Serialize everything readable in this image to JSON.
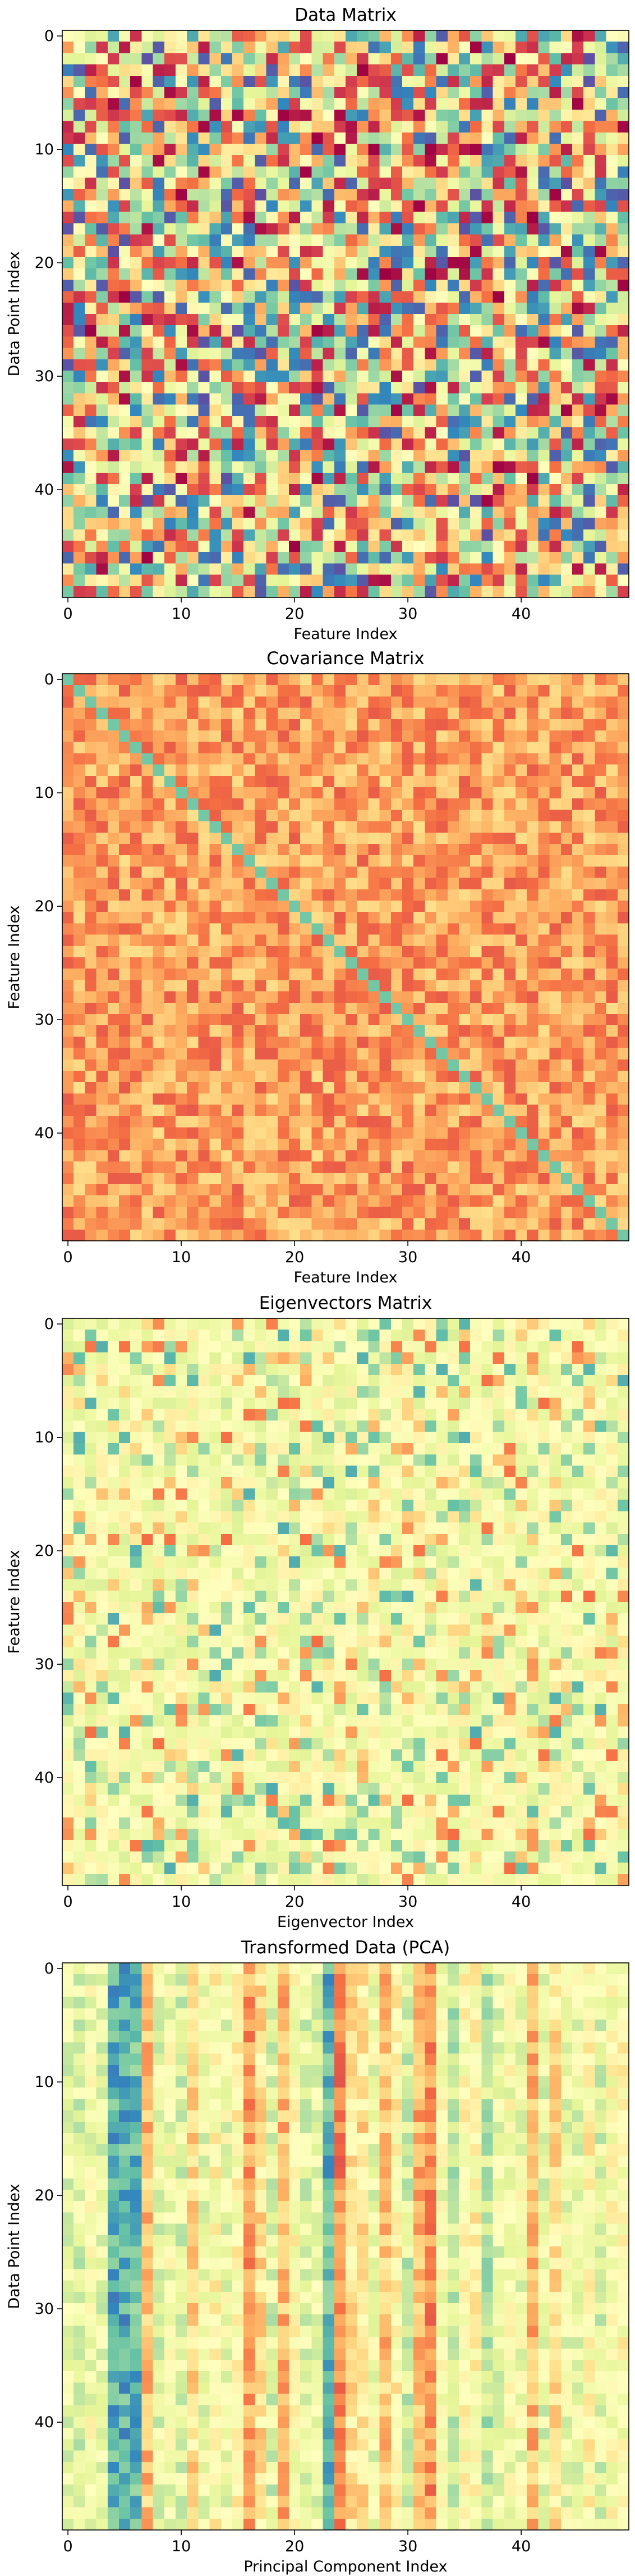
{
  "chart_data": [
    {
      "type": "heatmap",
      "title": "Data Matrix",
      "xlabel": "Feature Index",
      "ylabel": "Data Point Index",
      "rows": 50,
      "cols": 50,
      "xticks": [
        0,
        10,
        20,
        30,
        40
      ],
      "yticks": [
        0,
        10,
        20,
        30,
        40
      ],
      "colormap": "Spectral",
      "pattern": "uniform-random",
      "seed": 11
    },
    {
      "type": "heatmap",
      "title": "Covariance Matrix",
      "xlabel": "Feature Index",
      "ylabel": "Feature Index",
      "rows": 50,
      "cols": 50,
      "xticks": [
        0,
        10,
        20,
        30,
        40
      ],
      "yticks": [
        0,
        10,
        20,
        30,
        40
      ],
      "colormap": "Spectral",
      "pattern": "covariance",
      "seed": 23
    },
    {
      "type": "heatmap",
      "title": "Eigenvectors Matrix",
      "xlabel": "Eigenvector Index",
      "ylabel": "Feature Index",
      "rows": 50,
      "cols": 50,
      "xticks": [
        0,
        10,
        20,
        30,
        40
      ],
      "yticks": [
        0,
        10,
        20,
        30,
        40
      ],
      "colormap": "Spectral",
      "pattern": "eigenvectors",
      "seed": 37
    },
    {
      "type": "heatmap",
      "title": "Transformed Data (PCA)",
      "xlabel": "Principal Component Index",
      "ylabel": "Data Point Index",
      "rows": 50,
      "cols": 50,
      "xticks": [
        0,
        10,
        20,
        30,
        40
      ],
      "yticks": [
        0,
        10,
        20,
        30,
        40
      ],
      "colormap": "Spectral",
      "pattern": "column-stripes",
      "seed": 53
    }
  ]
}
